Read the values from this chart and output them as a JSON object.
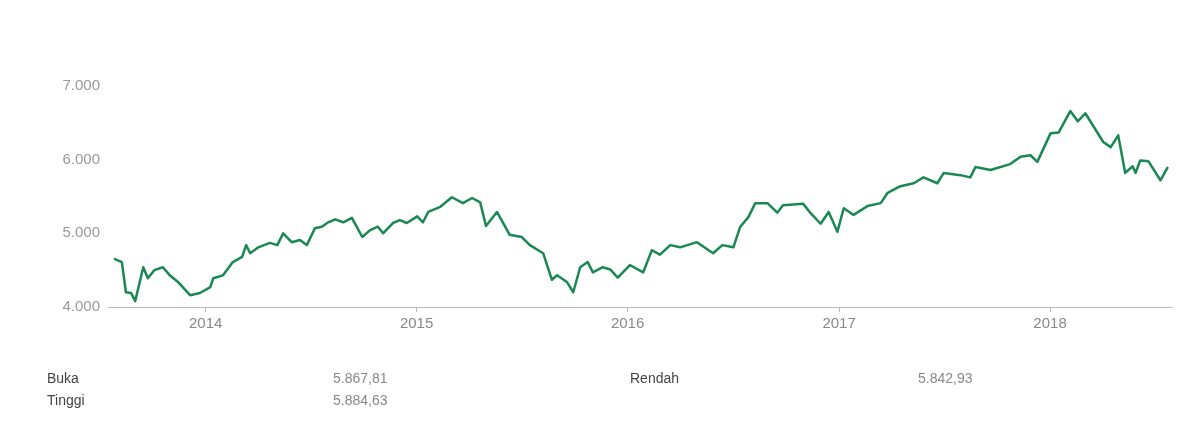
{
  "chart_data": {
    "type": "line",
    "x": [
      "2013-07-28",
      "2013-08-09",
      "2013-08-16",
      "2013-08-25",
      "2013-09-01",
      "2013-09-15",
      "2013-09-23",
      "2013-10-04",
      "2013-10-19",
      "2013-10-31",
      "2013-11-14",
      "2013-12-05",
      "2013-12-22",
      "2014-01-09",
      "2014-01-14",
      "2014-01-31",
      "2014-02-17",
      "2014-03-05",
      "2014-03-12",
      "2014-03-19",
      "2014-04-02",
      "2014-04-22",
      "2014-05-05",
      "2014-05-15",
      "2014-05-30",
      "2014-06-13",
      "2014-06-25",
      "2014-07-09",
      "2014-07-21",
      "2014-08-01",
      "2014-08-13",
      "2014-08-27",
      "2014-09-11",
      "2014-09-29",
      "2014-10-12",
      "2014-10-26",
      "2014-11-04",
      "2014-11-21",
      "2014-12-03",
      "2014-12-15",
      "2015-01-02",
      "2015-01-12",
      "2015-01-21",
      "2015-02-11",
      "2015-03-03",
      "2015-03-22",
      "2015-04-07",
      "2015-04-21",
      "2015-05-01",
      "2015-05-20",
      "2015-06-11",
      "2015-07-02",
      "2015-07-16",
      "2015-08-08",
      "2015-08-23",
      "2015-09-01",
      "2015-09-18",
      "2015-09-29",
      "2015-10-11",
      "2015-10-24",
      "2015-11-02",
      "2015-11-19",
      "2015-12-02",
      "2015-12-15",
      "2016-01-05",
      "2016-01-28",
      "2016-02-12",
      "2016-02-26",
      "2016-03-15",
      "2016-04-01",
      "2016-04-30",
      "2016-05-28",
      "2016-06-13",
      "2016-07-02",
      "2016-07-14",
      "2016-07-28",
      "2016-08-09",
      "2016-08-30",
      "2016-09-16",
      "2016-09-26",
      "2016-10-31",
      "2016-11-12",
      "2016-11-30",
      "2016-12-14",
      "2016-12-29",
      "2017-01-09",
      "2017-01-26",
      "2017-02-19",
      "2017-03-14",
      "2017-03-26",
      "2017-04-17",
      "2017-05-10",
      "2017-05-27",
      "2017-06-20",
      "2017-07-01",
      "2017-07-30",
      "2017-08-16",
      "2017-08-25",
      "2017-09-20",
      "2017-10-24",
      "2017-11-11",
      "2017-11-28",
      "2017-12-10",
      "2018-01-02",
      "2018-01-16",
      "2018-02-05",
      "2018-02-18",
      "2018-03-03",
      "2018-04-03",
      "2018-04-16",
      "2018-04-29",
      "2018-05-11",
      "2018-05-24",
      "2018-05-29",
      "2018-06-06",
      "2018-06-20",
      "2018-07-11",
      "2018-07-23"
    ],
    "series": [
      {
        "color": "#1a8754",
        "values": [
          4650,
          4610,
          4200,
          4190,
          4080,
          4540,
          4390,
          4500,
          4540,
          4430,
          4340,
          4160,
          4190,
          4270,
          4390,
          4430,
          4610,
          4680,
          4840,
          4730,
          4810,
          4870,
          4840,
          5000,
          4880,
          4910,
          4840,
          5070,
          5090,
          5150,
          5190,
          5150,
          5210,
          4950,
          5040,
          5090,
          5000,
          5140,
          5180,
          5140,
          5230,
          5150,
          5290,
          5360,
          5490,
          5410,
          5480,
          5420,
          5100,
          5290,
          4980,
          4950,
          4840,
          4730,
          4370,
          4430,
          4340,
          4200,
          4540,
          4610,
          4470,
          4540,
          4510,
          4400,
          4570,
          4470,
          4770,
          4710,
          4840,
          4810,
          4880,
          4730,
          4840,
          4810,
          5090,
          5220,
          5410,
          5410,
          5280,
          5380,
          5400,
          5280,
          5130,
          5290,
          5020,
          5340,
          5250,
          5370,
          5410,
          5550,
          5640,
          5680,
          5760,
          5680,
          5820,
          5790,
          5760,
          5900,
          5860,
          5940,
          6040,
          6060,
          5970,
          6360,
          6370,
          6660,
          6520,
          6630,
          6240,
          6170,
          6330,
          5820,
          5910,
          5820,
          5990,
          5980,
          5720,
          5890
        ]
      }
    ],
    "xlim": [
      "2013-07-16",
      "2018-07-31"
    ],
    "xticks": [
      "2014",
      "2015",
      "2016",
      "2017",
      "2018"
    ],
    "ylim": [
      4000,
      7000
    ],
    "yticks": [
      {
        "value": 4000,
        "label": "4.000"
      },
      {
        "value": 5000,
        "label": "5.000"
      },
      {
        "value": 6000,
        "label": "6.000"
      },
      {
        "value": 7000,
        "label": "7.000"
      }
    ],
    "annotations": [
      "Buka",
      "5.867,81",
      "Rendah",
      "5.842,93",
      "Tinggi",
      "5.884,63"
    ]
  }
}
